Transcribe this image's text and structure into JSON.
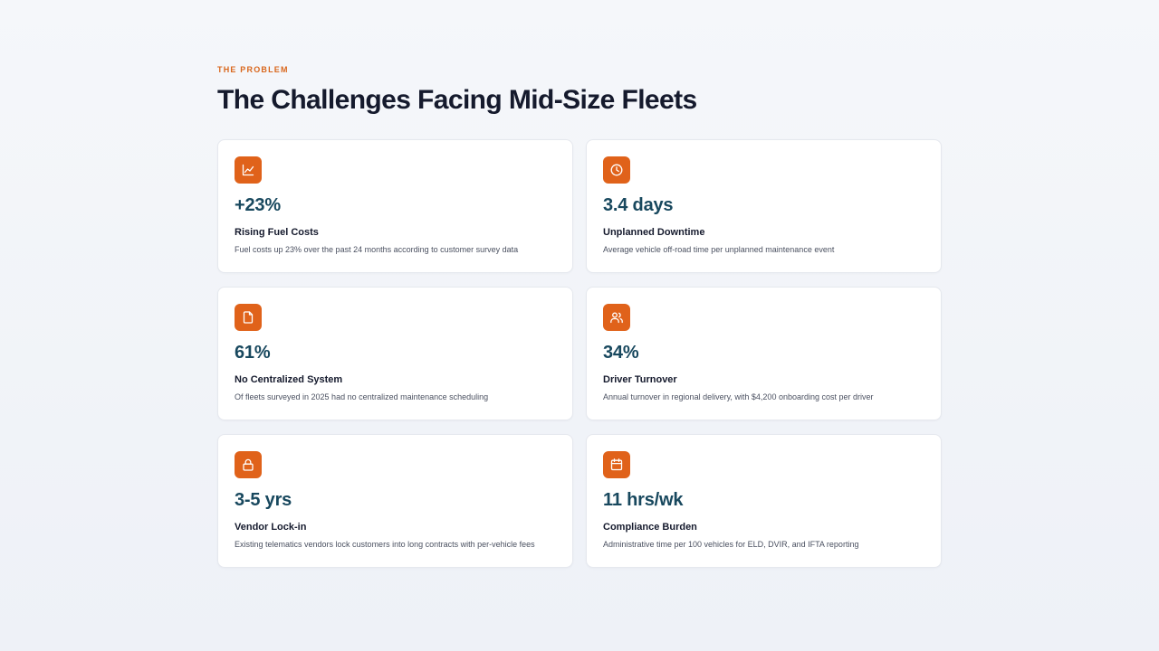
{
  "section": {
    "eyebrow": "THE PROBLEM",
    "title": "The Challenges Facing Mid-Size Fleets"
  },
  "colors": {
    "accent": "#e0621a",
    "stat": "#18485e",
    "title": "#151a2d"
  },
  "cards": [
    {
      "icon": "line-chart-icon",
      "stat": "+23%",
      "title": "Rising Fuel Costs",
      "description": "Fuel costs up 23% over the past 24 months according to customer survey data"
    },
    {
      "icon": "clock-icon",
      "stat": "3.4 days",
      "title": "Unplanned Downtime",
      "description": "Average vehicle off-road time per unplanned maintenance event"
    },
    {
      "icon": "document-icon",
      "stat": "61%",
      "title": "No Centralized System",
      "description": "Of fleets surveyed in 2025 had no centralized maintenance scheduling"
    },
    {
      "icon": "users-icon",
      "stat": "34%",
      "title": "Driver Turnover",
      "description": "Annual turnover in regional delivery, with $4,200 onboarding cost per driver"
    },
    {
      "icon": "lock-icon",
      "stat": "3-5 yrs",
      "title": "Vendor Lock-in",
      "description": "Existing telematics vendors lock customers into long contracts with per-vehicle fees"
    },
    {
      "icon": "calendar-icon",
      "stat": "11 hrs/wk",
      "title": "Compliance Burden",
      "description": "Administrative time per 100 vehicles for ELD, DVIR, and IFTA reporting"
    }
  ]
}
